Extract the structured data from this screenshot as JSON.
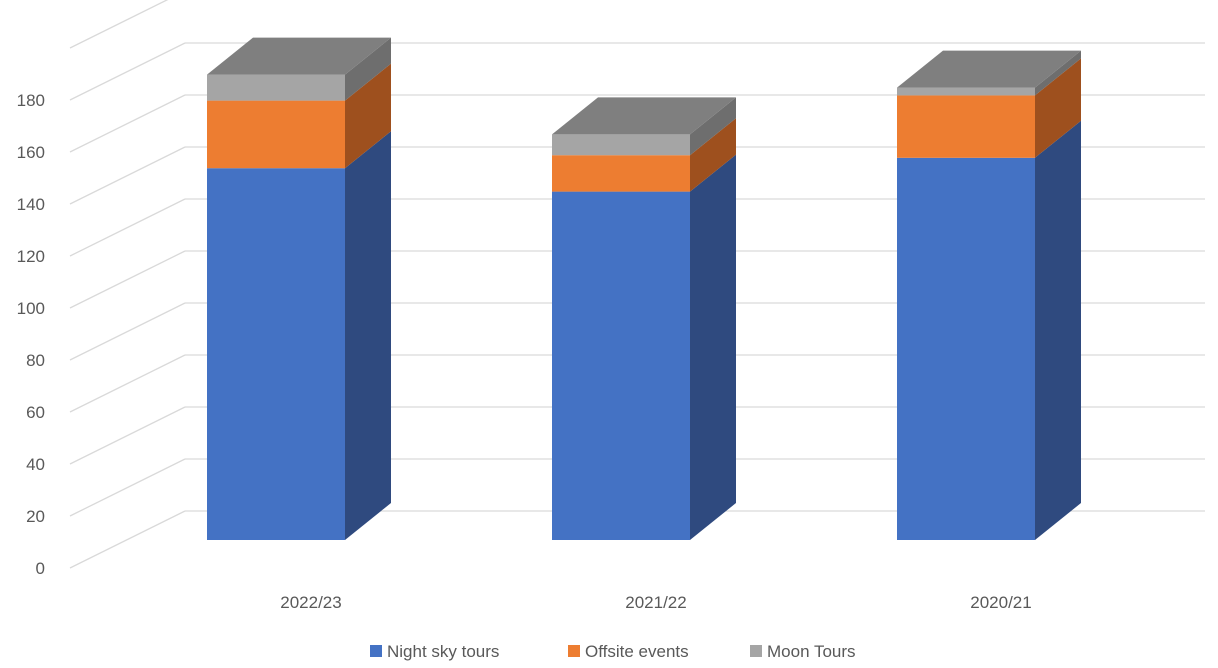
{
  "chart_data": {
    "type": "bar",
    "stacked": true,
    "three_d": true,
    "categories": [
      "2022/23",
      "2021/22",
      "2020/21"
    ],
    "series": [
      {
        "name": "Night sky tours",
        "color": "#4472C4",
        "side_color": "#2F4A7F",
        "values": [
          143,
          134,
          147
        ]
      },
      {
        "name": "Offsite events",
        "color": "#ED7D31",
        "side_color": "#9E501E",
        "values": [
          26,
          14,
          24
        ]
      },
      {
        "name": "Moon Tours",
        "color": "#A5A5A5",
        "side_color": "#6E6E6E",
        "values": [
          10,
          8,
          3
        ]
      }
    ],
    "top_color": "#7F7F7F",
    "y_ticks": [
      "0",
      "20",
      "40",
      "60",
      "80",
      "100",
      "120",
      "140",
      "160",
      "180"
    ],
    "ylim": [
      0,
      200
    ],
    "grid": true,
    "legend_position": "bottom",
    "title": "",
    "xlabel": "",
    "ylabel": ""
  }
}
